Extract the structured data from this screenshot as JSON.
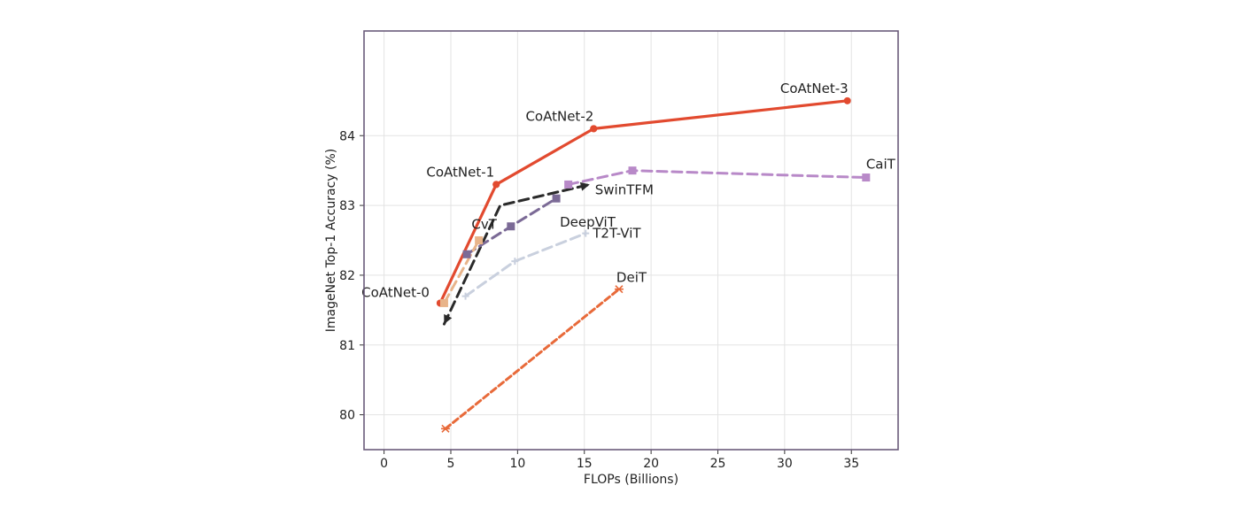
{
  "chart_data": {
    "type": "line",
    "title": "",
    "xlabel": "FLOPs (Billions)",
    "ylabel": "ImageNet Top-1 Accuracy (%)",
    "xlim": [
      -1.5,
      38.5
    ],
    "ylim": [
      79.5,
      85.5
    ],
    "xticks": [
      0,
      5,
      10,
      15,
      20,
      25,
      30,
      35
    ],
    "yticks": [
      80,
      81,
      82,
      83,
      84
    ],
    "grid": true,
    "legend": "none (series labeled inline)",
    "frame_color": "#6b5b7b",
    "series": [
      {
        "name": "CoAtNet-0",
        "show_line": false,
        "points": [
          {
            "x": 4.2,
            "y": 81.6
          }
        ],
        "color": "#e24a2f"
      },
      {
        "name": "CoAtNet-1",
        "show_line": false,
        "points": [
          {
            "x": 8.4,
            "y": 83.3
          }
        ],
        "color": "#e24a2f"
      },
      {
        "name": "CoAtNet-2",
        "show_line": false,
        "points": [
          {
            "x": 15.7,
            "y": 84.1
          }
        ],
        "color": "#e24a2f"
      },
      {
        "name": "CoAtNet-3",
        "points": [
          {
            "x": 4.2,
            "y": 81.6
          },
          {
            "x": 8.4,
            "y": 83.3
          },
          {
            "x": 15.7,
            "y": 84.1
          },
          {
            "x": 34.7,
            "y": 84.5
          }
        ],
        "color": "#e24a2f",
        "line_style": "solid",
        "marker": "circle"
      },
      {
        "name": "CaiT",
        "points": [
          {
            "x": 13.8,
            "y": 83.3
          },
          {
            "x": 18.6,
            "y": 83.5
          },
          {
            "x": 36.1,
            "y": 83.4
          }
        ],
        "color": "#b889c8",
        "line_style": "dashed",
        "marker": "square"
      },
      {
        "name": "SwinTFM",
        "points": [
          {
            "x": 4.5,
            "y": 81.3
          },
          {
            "x": 8.7,
            "y": 83.0
          },
          {
            "x": 15.4,
            "y": 83.3
          }
        ],
        "color": "#2a2a2a",
        "line_style": "dashed",
        "marker": "arrow"
      },
      {
        "name": "DeepViT",
        "points": [
          {
            "x": 6.2,
            "y": 82.3
          },
          {
            "x": 9.5,
            "y": 82.7
          },
          {
            "x": 12.9,
            "y": 83.1
          }
        ],
        "color": "#7b6a96",
        "line_style": "dashed",
        "marker": "square"
      },
      {
        "name": "CvT",
        "points": [
          {
            "x": 4.5,
            "y": 81.6
          },
          {
            "x": 7.1,
            "y": 82.5
          }
        ],
        "color": "#e8b48a",
        "line_style": "dashed",
        "marker": "square"
      },
      {
        "name": "T2T-ViT",
        "points": [
          {
            "x": 6.1,
            "y": 81.7
          },
          {
            "x": 9.8,
            "y": 82.2
          },
          {
            "x": 15.1,
            "y": 82.6
          }
        ],
        "color": "#c9d0de",
        "line_style": "dashed",
        "marker": "cross"
      },
      {
        "name": "DeiT",
        "points": [
          {
            "x": 4.6,
            "y": 79.8
          },
          {
            "x": 17.6,
            "y": 81.8
          }
        ],
        "color": "#e86a3a",
        "line_style": "dashed",
        "marker": "star"
      }
    ]
  }
}
